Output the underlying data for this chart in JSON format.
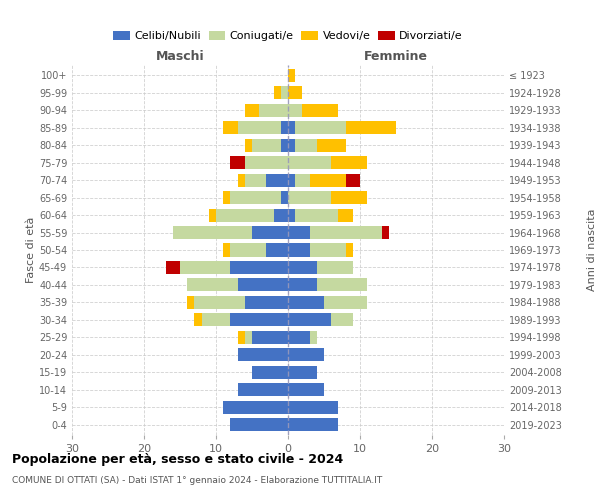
{
  "age_groups": [
    "0-4",
    "5-9",
    "10-14",
    "15-19",
    "20-24",
    "25-29",
    "30-34",
    "35-39",
    "40-44",
    "45-49",
    "50-54",
    "55-59",
    "60-64",
    "65-69",
    "70-74",
    "75-79",
    "80-84",
    "85-89",
    "90-94",
    "95-99",
    "100+"
  ],
  "years": [
    "2019-2023",
    "2014-2018",
    "2009-2013",
    "2004-2008",
    "1999-2003",
    "1994-1998",
    "1989-1993",
    "1984-1988",
    "1979-1983",
    "1974-1978",
    "1969-1973",
    "1964-1968",
    "1959-1963",
    "1954-1958",
    "1949-1953",
    "1944-1948",
    "1939-1943",
    "1934-1938",
    "1929-1933",
    "1924-1928",
    "≤ 1923"
  ],
  "maschi": {
    "celibi": [
      8,
      9,
      7,
      5,
      7,
      5,
      8,
      6,
      7,
      8,
      3,
      5,
      2,
      1,
      3,
      0,
      1,
      1,
      0,
      0,
      0
    ],
    "coniugati": [
      0,
      0,
      0,
      0,
      0,
      1,
      4,
      7,
      7,
      7,
      5,
      11,
      8,
      7,
      3,
      6,
      4,
      6,
      4,
      1,
      0
    ],
    "vedovi": [
      0,
      0,
      0,
      0,
      0,
      1,
      1,
      1,
      0,
      0,
      1,
      0,
      1,
      1,
      1,
      0,
      1,
      2,
      2,
      1,
      0
    ],
    "divorziati": [
      0,
      0,
      0,
      0,
      0,
      0,
      0,
      0,
      0,
      2,
      0,
      0,
      0,
      0,
      0,
      2,
      0,
      0,
      0,
      0,
      0
    ]
  },
  "femmine": {
    "nubili": [
      7,
      7,
      5,
      4,
      5,
      3,
      6,
      5,
      4,
      4,
      3,
      3,
      1,
      0,
      1,
      0,
      1,
      1,
      0,
      0,
      0
    ],
    "coniugate": [
      0,
      0,
      0,
      0,
      0,
      1,
      3,
      6,
      7,
      5,
      5,
      10,
      6,
      6,
      2,
      6,
      3,
      7,
      2,
      0,
      0
    ],
    "vedove": [
      0,
      0,
      0,
      0,
      0,
      0,
      0,
      0,
      0,
      0,
      1,
      0,
      2,
      5,
      5,
      5,
      4,
      7,
      5,
      2,
      1
    ],
    "divorziate": [
      0,
      0,
      0,
      0,
      0,
      0,
      0,
      0,
      0,
      0,
      0,
      1,
      0,
      0,
      2,
      0,
      0,
      0,
      0,
      0,
      0
    ]
  },
  "colors": {
    "celibi": "#4472c4",
    "coniugati": "#c5d9a0",
    "vedovi": "#ffc000",
    "divorziati": "#c00000"
  },
  "title": "Popolazione per età, sesso e stato civile - 2024",
  "subtitle": "COMUNE DI OTTATI (SA) - Dati ISTAT 1° gennaio 2024 - Elaborazione TUTTITALIA.IT",
  "xlabel_left": "Maschi",
  "xlabel_right": "Femmine",
  "ylabel_left": "Fasce di età",
  "ylabel_right": "Anni di nascita",
  "xlim": 30,
  "background_color": "#ffffff",
  "grid_color": "#cccccc"
}
